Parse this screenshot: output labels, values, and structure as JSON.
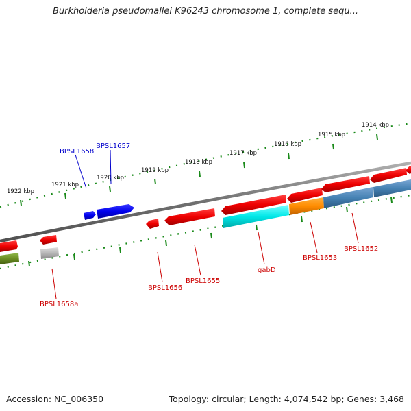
{
  "title": "Burkholderia pseudomallei K96243 chromosome 1, complete sequ...",
  "footer": {
    "accession": "Accession: NC_006350",
    "summary": "Topology: circular; Length: 4,074,542 bp; Genes: 3,468"
  },
  "kbp_labels": {
    "k1922": "1922 kbp",
    "k1921": "1921 kbp",
    "k1920": "1920 kbp",
    "k1919": "1919 kbp",
    "k1918": "1918 kbp",
    "k1917": "1917 kbp",
    "k1916": "1916 kbp",
    "k1915": "1915 kbp",
    "k1914": "1914 kbp"
  },
  "genes": {
    "bpsl1658": "BPSL1658",
    "bpsl1657": "BPSL1657",
    "bpsl1658a": "BPSL1658a",
    "bpsl1656": "BPSL1656",
    "bpsl1655": "BPSL1655",
    "gabd": "gabD",
    "bpsl1653": "BPSL1653",
    "bpsl1652": "BPSL1652"
  },
  "colors": {
    "backbone": "#808080",
    "tick": "#1a8a1a",
    "forward_label": "#0000cc",
    "reverse_label": "#cc0000",
    "red_gene": "#ee0000",
    "blue_gene": "#0000ee",
    "cyan_gene": "#00e8e8",
    "orange_gene": "#ff8c00",
    "steelblue_gene": "#4682b4",
    "olive_gene": "#6b8e23",
    "grey_gene": "#b0b0b0"
  }
}
